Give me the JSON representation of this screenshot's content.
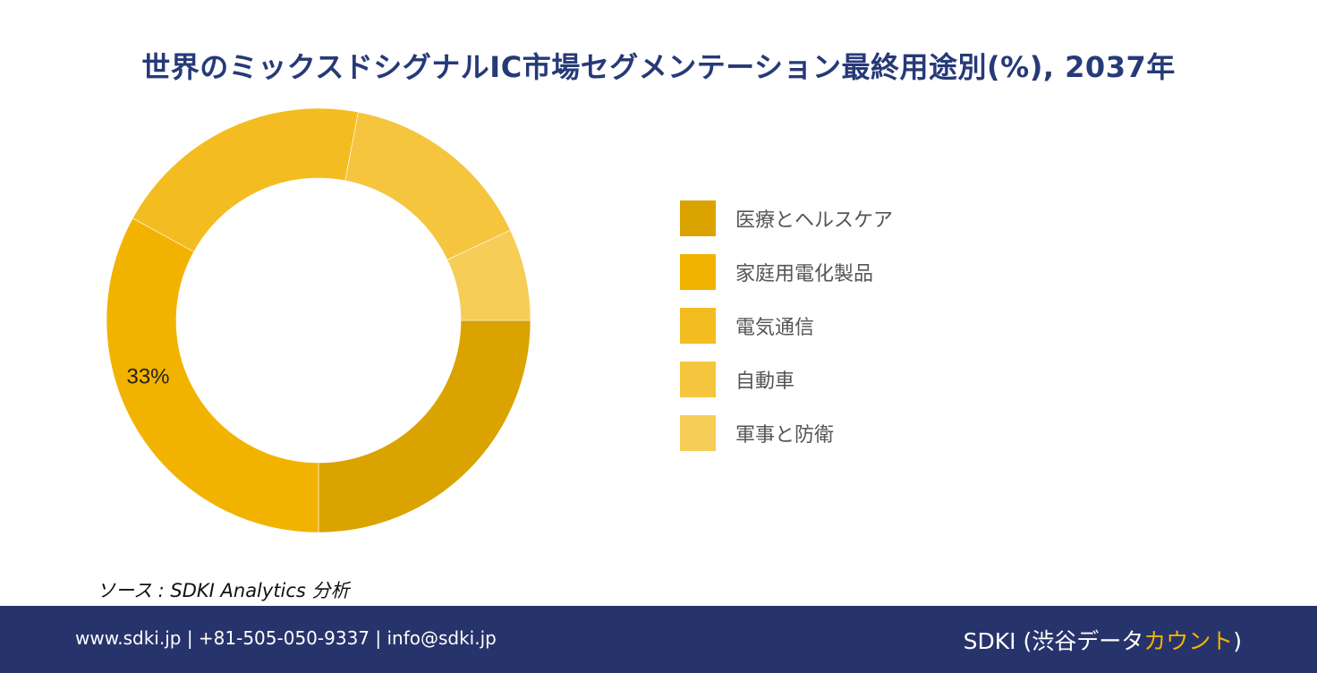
{
  "title": "世界のミックスドシグナルIC市場セグメンテーション最終用途別(%), 2037年",
  "chart_data": {
    "type": "pie",
    "donut": true,
    "categories": [
      "医療とヘルスケア",
      "家庭用電化製品",
      "電気通信",
      "自動車",
      "軍事と防衛"
    ],
    "values": [
      25,
      33,
      20,
      15,
      7
    ],
    "colors": [
      "#daa300",
      "#f2b300",
      "#f3bc20",
      "#f5c53e",
      "#f6cd57"
    ],
    "data_labels": [
      "",
      "33%",
      "",
      "",
      ""
    ],
    "legend_position": "right"
  },
  "source": "ソース : SDKI Analytics  分析",
  "footer": {
    "contact": "www.sdki.jp | +81-505-050-9337 | info@sdki.jp",
    "brand_prefix": "SDKI (渋谷データ",
    "brand_accent": "カウント",
    "brand_suffix": ")"
  }
}
